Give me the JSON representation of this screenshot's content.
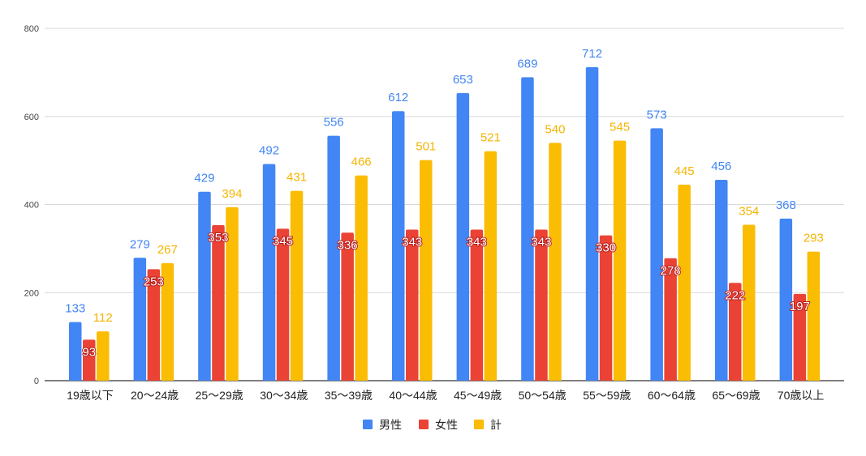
{
  "chart_data": {
    "type": "bar",
    "title": "",
    "xlabel": "",
    "ylabel": "",
    "ylim": [
      0,
      800
    ],
    "yticks": [
      0,
      200,
      400,
      600,
      800
    ],
    "grid": true,
    "legend_position": "bottom",
    "categories": [
      "19歳以下",
      "20〜24歳",
      "25〜29歳",
      "30〜34歳",
      "35〜39歳",
      "40〜44歳",
      "45〜49歳",
      "50〜54歳",
      "55〜59歳",
      "60〜64歳",
      "65〜69歳",
      "70歳以上"
    ],
    "series": [
      {
        "name": "男性",
        "color": "#4285F4",
        "label_color": "#4285F4",
        "values": [
          133,
          279,
          429,
          492,
          556,
          612,
          653,
          689,
          712,
          573,
          456,
          368
        ]
      },
      {
        "name": "女性",
        "color": "#EA4335",
        "label_color": "#ffffff",
        "values": [
          93,
          253,
          353,
          345,
          336,
          343,
          343,
          343,
          330,
          278,
          222,
          197
        ]
      },
      {
        "name": "計",
        "color": "#FBBC04",
        "label_color": "#F4B400",
        "values": [
          112,
          267,
          394,
          431,
          466,
          501,
          521,
          540,
          545,
          445,
          354,
          293
        ]
      }
    ]
  }
}
